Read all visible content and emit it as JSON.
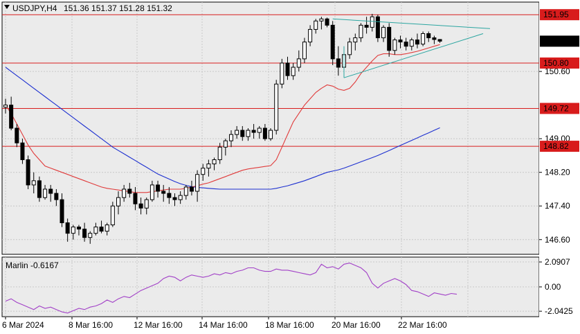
{
  "chart_data": [
    {
      "type": "candlestick",
      "title": "USDJPY,H4",
      "ohlc_label": "151.36 151.37 151.28 151.32",
      "price_ticks": [
        "150.60",
        "149.00",
        "148.20",
        "147.40",
        "146.60"
      ],
      "ylim": [
        146.25,
        152.25
      ],
      "horizontal_levels": [
        {
          "label": "151.95",
          "value": 151.95
        },
        {
          "label": "150.80",
          "value": 150.8
        },
        {
          "label": "149.72",
          "value": 149.72
        },
        {
          "label": "148.82",
          "value": 148.82
        }
      ],
      "current_price": {
        "label": "151.32",
        "value": 151.32
      },
      "x_labels": [
        "6 Mar 2024",
        "8 Mar 16:00",
        "12 Mar 16:00",
        "14 Mar 16:00",
        "18 Mar 16:00",
        "20 Mar 16:00",
        "22 Mar 16:00"
      ],
      "candles": [
        [
          149.75,
          149.95,
          149.6,
          149.8
        ],
        [
          149.8,
          150.0,
          149.2,
          149.25
        ],
        [
          149.25,
          149.35,
          148.8,
          148.9
        ],
        [
          148.9,
          149.0,
          148.4,
          148.5
        ],
        [
          148.5,
          148.6,
          147.8,
          147.9
        ],
        [
          147.9,
          148.2,
          147.7,
          148.0
        ],
        [
          148.0,
          148.1,
          147.5,
          147.6
        ],
        [
          147.6,
          147.9,
          147.55,
          147.8
        ],
        [
          147.8,
          147.9,
          147.5,
          147.7
        ],
        [
          147.7,
          147.8,
          147.4,
          147.55
        ],
        [
          147.55,
          147.7,
          146.9,
          147.0
        ],
        [
          147.0,
          147.1,
          146.55,
          146.75
        ],
        [
          146.75,
          146.95,
          146.6,
          146.9
        ],
        [
          146.9,
          146.95,
          146.7,
          146.85
        ],
        [
          146.85,
          147.0,
          146.55,
          146.65
        ],
        [
          146.65,
          146.8,
          146.5,
          146.75
        ],
        [
          146.75,
          147.0,
          146.7,
          146.9
        ],
        [
          146.9,
          147.05,
          146.75,
          146.8
        ],
        [
          146.8,
          147.0,
          146.7,
          146.95
        ],
        [
          146.95,
          147.5,
          146.9,
          147.4
        ],
        [
          147.4,
          147.75,
          147.2,
          147.6
        ],
        [
          147.6,
          147.9,
          147.5,
          147.8
        ],
        [
          147.8,
          147.95,
          147.6,
          147.7
        ],
        [
          147.7,
          147.85,
          147.3,
          147.45
        ],
        [
          147.45,
          147.6,
          147.2,
          147.35
        ],
        [
          147.35,
          147.6,
          147.2,
          147.55
        ],
        [
          147.55,
          148.0,
          147.5,
          147.9
        ],
        [
          147.9,
          148.0,
          147.6,
          147.75
        ],
        [
          147.75,
          147.9,
          147.5,
          147.7
        ],
        [
          147.7,
          147.85,
          147.45,
          147.6
        ],
        [
          147.6,
          147.7,
          147.4,
          147.55
        ],
        [
          147.55,
          147.75,
          147.45,
          147.65
        ],
        [
          147.65,
          147.9,
          147.55,
          147.85
        ],
        [
          147.85,
          148.0,
          147.65,
          147.75
        ],
        [
          147.75,
          148.25,
          147.5,
          148.15
        ],
        [
          148.15,
          148.4,
          148.0,
          148.3
        ],
        [
          148.3,
          148.5,
          148.1,
          148.4
        ],
        [
          148.4,
          148.55,
          148.25,
          148.5
        ],
        [
          148.5,
          148.9,
          148.4,
          148.8
        ],
        [
          148.8,
          149.0,
          148.6,
          148.95
        ],
        [
          148.95,
          149.2,
          148.8,
          149.1
        ],
        [
          149.1,
          149.3,
          149.0,
          149.2
        ],
        [
          149.2,
          149.3,
          148.95,
          149.05
        ],
        [
          149.05,
          149.25,
          148.95,
          149.2
        ],
        [
          149.2,
          149.35,
          149.0,
          149.15
        ],
        [
          149.15,
          149.3,
          149.0,
          149.25
        ],
        [
          149.25,
          149.35,
          148.95,
          149.0
        ],
        [
          149.0,
          149.25,
          148.95,
          149.2
        ],
        [
          149.2,
          150.4,
          149.1,
          150.3
        ],
        [
          150.3,
          150.9,
          150.2,
          150.8
        ],
        [
          150.8,
          150.95,
          150.4,
          150.5
        ],
        [
          150.5,
          150.8,
          150.4,
          150.7
        ],
        [
          150.7,
          151.1,
          150.6,
          150.9
        ],
        [
          150.9,
          151.4,
          150.8,
          151.3
        ],
        [
          151.3,
          151.7,
          151.2,
          151.6
        ],
        [
          151.6,
          151.85,
          151.5,
          151.8
        ],
        [
          151.8,
          151.9,
          151.6,
          151.85
        ],
        [
          151.85,
          151.88,
          151.65,
          151.7
        ],
        [
          151.7,
          151.8,
          150.75,
          150.9
        ],
        [
          150.9,
          151.2,
          150.5,
          150.7
        ],
        [
          150.7,
          151.1,
          150.6,
          151.0
        ],
        [
          151.0,
          151.4,
          150.9,
          151.3
        ],
        [
          151.3,
          151.5,
          151.1,
          151.4
        ],
        [
          151.4,
          151.75,
          151.3,
          151.7
        ],
        [
          151.7,
          151.9,
          151.5,
          151.65
        ],
        [
          151.65,
          151.97,
          151.55,
          151.9
        ],
        [
          151.9,
          151.95,
          151.3,
          151.4
        ],
        [
          151.4,
          151.7,
          151.3,
          151.65
        ],
        [
          151.65,
          151.75,
          150.95,
          151.1
        ],
        [
          151.1,
          151.4,
          151.0,
          151.35
        ],
        [
          151.35,
          151.45,
          151.15,
          151.3
        ],
        [
          151.3,
          151.4,
          151.1,
          151.2
        ],
        [
          151.2,
          151.4,
          151.1,
          151.35
        ],
        [
          151.35,
          151.5,
          151.15,
          151.25
        ],
        [
          151.25,
          151.55,
          151.2,
          151.5
        ],
        [
          151.5,
          151.55,
          151.3,
          151.4
        ],
        [
          151.4,
          151.45,
          151.25,
          151.36
        ],
        [
          151.36,
          151.37,
          151.28,
          151.32
        ]
      ],
      "ma_red": [
        149.8,
        149.6,
        149.35,
        149.1,
        148.85,
        148.65,
        148.5,
        148.35,
        148.3,
        148.25,
        148.2,
        148.15,
        148.1,
        148.05,
        148.0,
        147.95,
        147.9,
        147.85,
        147.82,
        147.8,
        147.78,
        147.76,
        147.74,
        147.72,
        147.72,
        147.72,
        147.74,
        147.76,
        147.78,
        147.8,
        147.8,
        147.8,
        147.82,
        147.85,
        147.88,
        147.92,
        147.95,
        148.0,
        148.05,
        148.1,
        148.15,
        148.2,
        148.25,
        148.28,
        148.3,
        148.32,
        148.34,
        148.36,
        148.5,
        148.8,
        149.1,
        149.4,
        149.6,
        149.8,
        149.95,
        150.1,
        150.2,
        150.28,
        150.25,
        150.18,
        150.15,
        150.2,
        150.35,
        150.55,
        150.7,
        150.85,
        150.98,
        151.02,
        151.02,
        151.0,
        151.0,
        151.02,
        151.05,
        151.08,
        151.12,
        151.16,
        151.2,
        151.24
      ],
      "ma_blue": [
        150.7,
        150.6,
        150.5,
        150.4,
        150.3,
        150.2,
        150.1,
        150.0,
        149.9,
        149.8,
        149.7,
        149.6,
        149.5,
        149.4,
        149.3,
        149.2,
        149.1,
        149.0,
        148.9,
        148.8,
        148.72,
        148.64,
        148.56,
        148.48,
        148.4,
        148.32,
        148.24,
        148.16,
        148.1,
        148.04,
        147.98,
        147.93,
        147.89,
        147.86,
        147.84,
        147.83,
        147.82,
        147.81,
        147.8,
        147.8,
        147.8,
        147.8,
        147.8,
        147.8,
        147.8,
        147.8,
        147.8,
        147.8,
        147.82,
        147.85,
        147.88,
        147.92,
        147.96,
        148.0,
        148.05,
        148.1,
        148.15,
        148.2,
        148.23,
        148.26,
        148.3,
        148.35,
        148.4,
        148.45,
        148.5,
        148.55,
        148.6,
        148.66,
        148.72,
        148.78,
        148.84,
        148.9,
        148.96,
        149.02,
        149.08,
        149.14,
        149.2,
        149.26
      ]
    },
    {
      "type": "line",
      "title": "Marlin -0.6167",
      "ticks": [
        "2.0907",
        "0.00",
        "-2.0425"
      ],
      "ylim": [
        -2.5,
        2.5
      ],
      "values": [
        -1.2,
        -1.0,
        -1.3,
        -1.5,
        -1.7,
        -1.9,
        -1.6,
        -1.8,
        -1.7,
        -1.9,
        -2.1,
        -2.2,
        -2.0,
        -1.8,
        -1.9,
        -1.7,
        -1.6,
        -1.4,
        -1.1,
        -1.3,
        -1.0,
        -0.8,
        -0.9,
        -0.6,
        -0.3,
        -0.1,
        0.1,
        0.3,
        0.7,
        0.9,
        0.8,
        0.5,
        0.8,
        1.0,
        0.9,
        0.8,
        0.9,
        1.1,
        1.0,
        1.2,
        1.1,
        1.3,
        1.4,
        1.6,
        1.6,
        1.4,
        1.3,
        1.3,
        1.5,
        1.4,
        1.4,
        1.3,
        1.2,
        1.1,
        1.0,
        1.2,
        1.9,
        1.6,
        1.7,
        1.5,
        1.9,
        2.0,
        1.8,
        1.6,
        1.2,
        0.3,
        -0.1,
        0.3,
        0.5,
        0.7,
        0.5,
        0.2,
        -0.3,
        -0.4,
        -0.6,
        -0.8,
        -0.5,
        -0.6,
        -0.7,
        -0.55,
        -0.6167
      ]
    }
  ],
  "colors": {
    "background": "#ffffff",
    "plot_bg": "#ebebeb",
    "level_line": "#d81c1c",
    "ma_red": "#e03a3a",
    "ma_blue": "#1c2fd0",
    "triangle": "#2aa5a0",
    "oscillator": "#a13fc7",
    "price_label_bg": "#000000"
  }
}
